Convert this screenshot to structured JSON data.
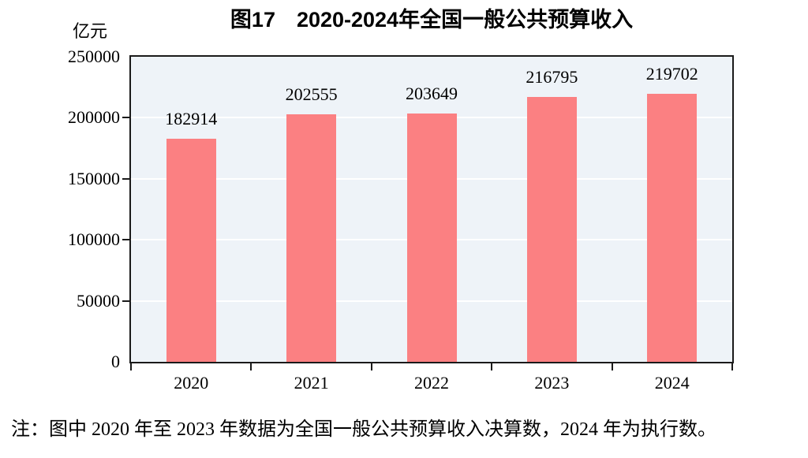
{
  "chart_data": {
    "type": "bar",
    "title": "图17　2020-2024年全国一般公共预算收入",
    "unit_label": "亿元",
    "categories": [
      "2020",
      "2021",
      "2022",
      "2023",
      "2024"
    ],
    "values": [
      182914,
      202555,
      203649,
      216795,
      219702
    ],
    "value_labels": [
      "182914",
      "202555",
      "203649",
      "216795",
      "219702"
    ],
    "ylim": [
      0,
      250000
    ],
    "ytick_interval": 50000,
    "ytick_labels": [
      "0",
      "50000",
      "100000",
      "150000",
      "200000",
      "250000"
    ],
    "grid": "horizontal-major-white",
    "legend": "none",
    "colors": {
      "bar": "#fb8082",
      "plot_background": "#eef3f8",
      "axis": "#1a1a1a",
      "gridline": "#ffffff",
      "text": "#000000",
      "page_background": "#ffffff"
    }
  },
  "footnote": "注：图中 2020 年至 2023 年数据为全国一般公共预算收入决算数，2024 年为执行数。"
}
